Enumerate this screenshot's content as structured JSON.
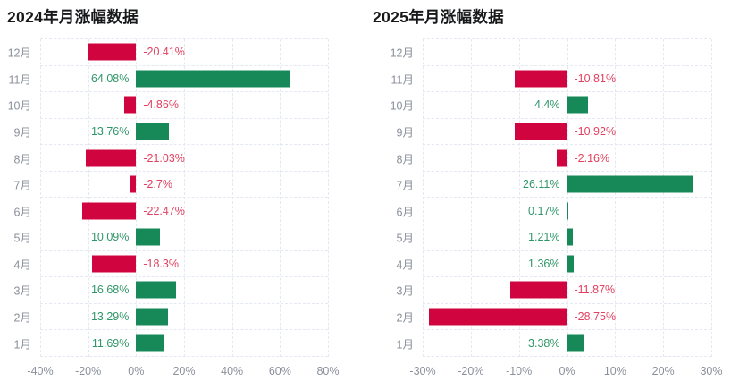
{
  "colors": {
    "background": "#ffffff",
    "title": "#17181a",
    "axis_text": "#8a909b",
    "grid": "#e3e8f3",
    "positive_bar": "#178858",
    "negative_bar": "#d0043f",
    "positive_label": "#2f9668",
    "negative_label": "#e2405f"
  },
  "chart_data": [
    {
      "type": "bar",
      "orientation": "horizontal",
      "title": "2024年月涨幅数据",
      "categories": [
        "12月",
        "11月",
        "10月",
        "9月",
        "8月",
        "7月",
        "6月",
        "5月",
        "4月",
        "3月",
        "2月",
        "1月"
      ],
      "values": [
        -20.41,
        64.08,
        -4.86,
        13.76,
        -21.03,
        -2.7,
        -22.47,
        10.09,
        -18.3,
        16.68,
        13.29,
        11.69
      ],
      "value_labels": [
        "-20.41%",
        "64.08%",
        "-4.86%",
        "13.76%",
        "-21.03%",
        "-2.7%",
        "-22.47%",
        "10.09%",
        "-18.3%",
        "16.68%",
        "13.29%",
        "11.69%"
      ],
      "xlim": [
        -40,
        80
      ],
      "x_ticks": [
        "-40%",
        "-20%",
        "0%",
        "20%",
        "40%",
        "60%",
        "80%"
      ],
      "grid": "dashed",
      "xlabel": "",
      "ylabel": ""
    },
    {
      "type": "bar",
      "orientation": "horizontal",
      "title": "2025年月涨幅数据",
      "categories": [
        "12月",
        "11月",
        "10月",
        "9月",
        "8月",
        "7月",
        "6月",
        "5月",
        "4月",
        "3月",
        "2月",
        "1月"
      ],
      "values": [
        null,
        -10.81,
        4.4,
        -10.92,
        -2.16,
        26.11,
        0.17,
        1.21,
        1.36,
        -11.87,
        -28.75,
        3.38
      ],
      "value_labels": [
        "",
        "-10.81%",
        "4.4%",
        "-10.92%",
        "-2.16%",
        "26.11%",
        "0.17%",
        "1.21%",
        "1.36%",
        "-11.87%",
        "-28.75%",
        "3.38%"
      ],
      "xlim": [
        -30,
        30
      ],
      "x_ticks": [
        "-30%",
        "-20%",
        "-10%",
        "0%",
        "10%",
        "20%",
        "30%"
      ],
      "grid": "dashed",
      "xlabel": "",
      "ylabel": ""
    }
  ]
}
